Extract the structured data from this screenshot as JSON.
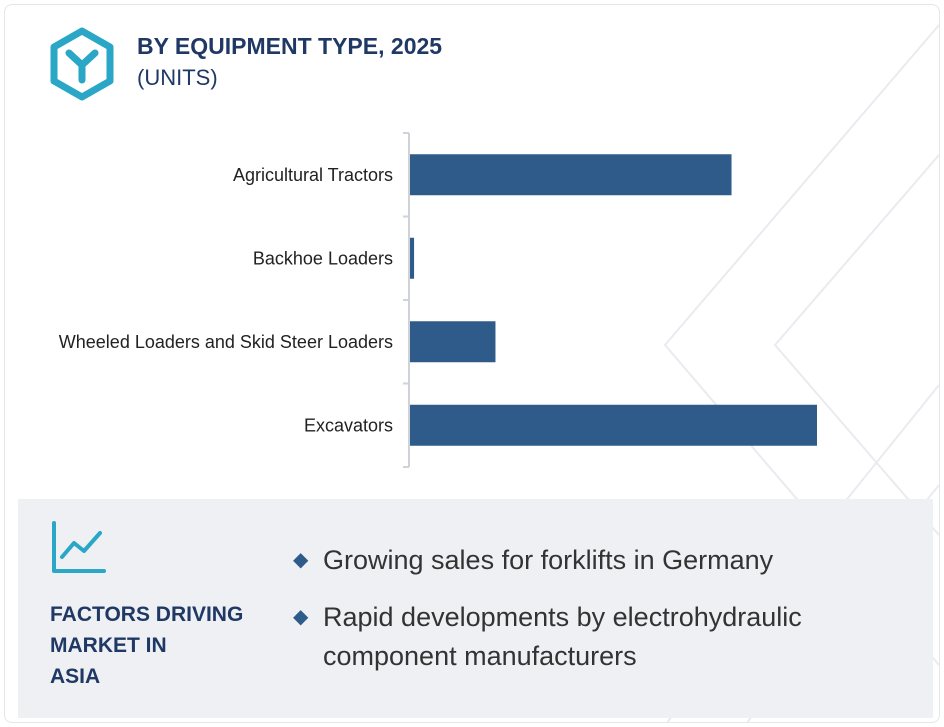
{
  "header": {
    "title": "BY EQUIPMENT TYPE, 2025",
    "subtitle": "(UNITS)",
    "logo_icon": "hexagon-y-logo-icon"
  },
  "colors": {
    "bar": "#2e5b8a",
    "title": "#1f3864",
    "accent": "#2aa6c6",
    "panel_bg": "#eef0f4"
  },
  "chart_data": {
    "type": "bar",
    "orientation": "horizontal",
    "categories": [
      "Agricultural Tractors",
      "Backhoe Loaders",
      "Wheeled Loaders and Skid Steer Loaders",
      "Excavators"
    ],
    "values": [
      79,
      1,
      21,
      100
    ],
    "value_scale": "relative (no axis values shown)",
    "xlim": [
      0,
      100
    ],
    "grid": false,
    "legend": "none"
  },
  "factors": {
    "icon": "trend-chart-icon",
    "heading_lines": [
      "FACTORS DRIVING",
      "MARKET IN",
      "ASIA"
    ],
    "items": [
      "Growing sales for forklifts in Germany",
      "Rapid developments by electrohydraulic component manufacturers"
    ]
  }
}
